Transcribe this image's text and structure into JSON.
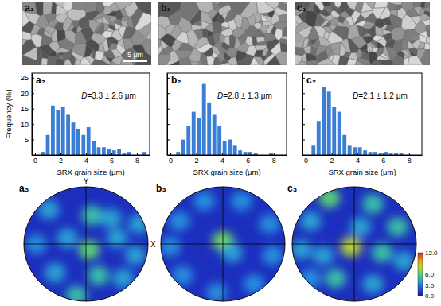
{
  "images": [
    {
      "label": "a₁"
    },
    {
      "label": "b₁"
    },
    {
      "label": "c₁"
    }
  ],
  "scale_bar": {
    "label": "5 μm"
  },
  "chart_data": [
    {
      "type": "histogram",
      "label": "a₂",
      "color": "#3a7fd5",
      "bins": [
        0.4,
        0.8,
        1.2,
        1.6,
        2,
        2.4,
        2.8,
        3.2,
        3.6,
        4,
        4.4,
        4.8,
        5.2,
        5.6,
        6,
        6.4,
        6.8,
        7.2,
        7.6,
        8,
        8.4,
        8.8
      ],
      "values": [
        1,
        6.5,
        16,
        14.5,
        15.5,
        13,
        10.5,
        8.5,
        6.5,
        9,
        4.5,
        2.5,
        2.5,
        2,
        1.5,
        2,
        0.5,
        1,
        0,
        0,
        1
      ],
      "xlim": [
        -0.25,
        9
      ],
      "ylim": [
        0,
        26.5
      ],
      "xticks": [
        0,
        2,
        4,
        6,
        8
      ],
      "yticks": [
        5,
        10,
        15,
        20,
        25
      ],
      "x_label": "SRX grain size (μm)",
      "y_label": "Frequency (%)",
      "annotation": "D=3.3 ± 2.6 μm",
      "tick_labels": true
    },
    {
      "type": "histogram",
      "label": "b₂",
      "color": "#3a7fd5",
      "bins": [
        0.4,
        0.8,
        1.2,
        1.6,
        2,
        2.4,
        2.8,
        3.2,
        3.6,
        4,
        4.4,
        4.8,
        5.2,
        5.6,
        6,
        6.4,
        6.8,
        7.2,
        7.6,
        8
      ],
      "values": [
        1,
        5,
        9.5,
        14,
        12,
        23,
        17,
        13,
        9.5,
        4.5,
        5,
        3,
        1.5,
        1,
        1,
        0.5,
        0,
        0,
        0.5
      ],
      "xlim": [
        -0.25,
        9
      ],
      "ylim": [
        0,
        26.5
      ],
      "xticks": [
        0,
        2,
        4,
        6,
        8
      ],
      "yticks": [
        5,
        10,
        15,
        20,
        25
      ],
      "x_label": "SRX grain size (μm)",
      "annotation": "D=2.8 ± 1.3 μm",
      "tick_labels": "x"
    },
    {
      "type": "histogram",
      "label": "c₂",
      "color": "#3a7fd5",
      "bins": [
        0.4,
        0.8,
        1.2,
        1.6,
        2,
        2.4,
        2.8,
        3.2,
        3.6,
        4,
        4.4,
        4.8,
        5.2,
        5.6,
        6,
        6.4,
        6.8,
        7.2,
        7.6
      ],
      "values": [
        3,
        11,
        22,
        20.5,
        15.5,
        14,
        6.5,
        3,
        2.5,
        2.5,
        1.5,
        1,
        1,
        0.5,
        1,
        0.5,
        0.5,
        0.5
      ],
      "xlim": [
        -0.25,
        9
      ],
      "ylim": [
        0,
        26.5
      ],
      "xticks": [
        0,
        2,
        4,
        6,
        8
      ],
      "yticks": [
        5,
        10,
        15,
        20,
        25
      ],
      "x_label": "SRX grain size (μm)",
      "annotation": "D=2.1 ± 1.2 μm",
      "tick_labels": "x"
    },
    {
      "type": "pole_figure",
      "label": "a₃",
      "background": 0.8,
      "x_label": "X",
      "y_label": "Y",
      "spots": [
        {
          "x": -0.6,
          "y": 0.6,
          "value": 4
        },
        {
          "x": 0.1,
          "y": 0.5,
          "value": 5
        },
        {
          "x": 0.4,
          "y": 0.45,
          "value": 4
        },
        {
          "x": -0.8,
          "y": 0,
          "value": 3.5
        },
        {
          "x": -0.3,
          "y": 0.1,
          "value": 4
        },
        {
          "x": 0.05,
          "y": -0.1,
          "value": 6
        },
        {
          "x": 0.5,
          "y": 0.1,
          "value": 4
        },
        {
          "x": 0.8,
          "y": -0.2,
          "value": 4
        },
        {
          "x": -0.5,
          "y": -0.5,
          "value": 4
        },
        {
          "x": 0.2,
          "y": -0.55,
          "value": 5
        },
        {
          "x": 0.6,
          "y": -0.6,
          "value": 4
        },
        {
          "x": -0.15,
          "y": -0.9,
          "value": 5
        },
        {
          "x": 0.85,
          "y": 0.35,
          "value": 4
        }
      ]
    },
    {
      "type": "pole_figure",
      "label": "b₃",
      "background": 0.8,
      "spots": [
        {
          "x": -0.7,
          "y": 0.4,
          "value": 3.5
        },
        {
          "x": -0.3,
          "y": 0.75,
          "value": 3.5
        },
        {
          "x": 0.3,
          "y": 0.75,
          "value": 3.5
        },
        {
          "x": 0.75,
          "y": 0.35,
          "value": 3.5
        },
        {
          "x": 0.8,
          "y": -0.2,
          "value": 3.5
        },
        {
          "x": 0.5,
          "y": -0.7,
          "value": 3.5
        },
        {
          "x": -0.1,
          "y": -0.85,
          "value": 3.5
        },
        {
          "x": -0.65,
          "y": -0.55,
          "value": 3.5
        },
        {
          "x": -0.85,
          "y": -0.05,
          "value": 3.5
        },
        {
          "x": 0,
          "y": 0.05,
          "value": 6.5
        },
        {
          "x": 0.15,
          "y": -0.15,
          "value": 4
        }
      ]
    },
    {
      "type": "pole_figure",
      "label": "c₃",
      "background": 0.8,
      "spots": [
        {
          "x": -0.4,
          "y": 0.8,
          "value": 6
        },
        {
          "x": 0.3,
          "y": 0.7,
          "value": 5
        },
        {
          "x": -0.7,
          "y": 0.4,
          "value": 4
        },
        {
          "x": 0.1,
          "y": 0.3,
          "value": 4
        },
        {
          "x": 0.7,
          "y": 0.3,
          "value": 5
        },
        {
          "x": -0.05,
          "y": -0.05,
          "value": 8
        },
        {
          "x": 0.45,
          "y": -0.15,
          "value": 5
        },
        {
          "x": -0.5,
          "y": -0.2,
          "value": 4
        },
        {
          "x": -0.85,
          "y": -0.1,
          "value": 4
        },
        {
          "x": 0.8,
          "y": -0.3,
          "value": 4
        },
        {
          "x": -0.3,
          "y": -0.6,
          "value": 5
        },
        {
          "x": 0.3,
          "y": -0.7,
          "value": 4
        },
        {
          "x": -0.7,
          "y": -0.6,
          "value": 3.5
        }
      ]
    }
  ],
  "colorbar": {
    "range": [
      0,
      12
    ],
    "ticks": [
      {
        "value": 12,
        "label": "12.0"
      },
      {
        "value": 6,
        "label": "6.0"
      },
      {
        "value": 3,
        "label": "3.0"
      },
      {
        "value": 0,
        "label": "0.0"
      }
    ]
  }
}
